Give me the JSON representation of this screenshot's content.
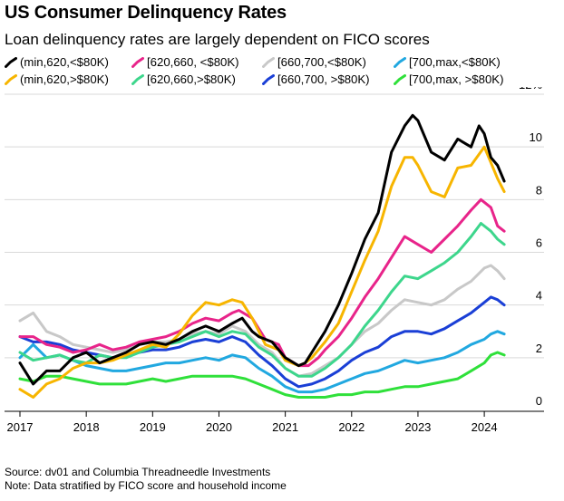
{
  "title": "US Consumer Delinquency Rates",
  "subtitle": "Loan delinquency rates are largely dependent on FICO scores",
  "source": "Source: dv01 and Columbia Threadneedle Investments",
  "note": "Note: Data stratified by FICO score and household income",
  "chart_data": {
    "type": "line",
    "title": "US Consumer Delinquency Rates",
    "subtitle": "Loan delinquency rates are largely dependent on FICO scores",
    "xlabel": "",
    "ylabel": "",
    "xlim": [
      2017,
      2024.6
    ],
    "ylim": [
      0,
      12
    ],
    "x_ticks": [
      2017,
      2018,
      2019,
      2020,
      2021,
      2022,
      2023,
      2024
    ],
    "x_tick_labels": [
      "2017",
      "2018",
      "2019",
      "2020",
      "2021",
      "2022",
      "2023",
      "2024"
    ],
    "y_ticks": [
      0,
      2,
      4,
      6,
      8,
      10,
      12
    ],
    "y_tick_labels": [
      "0",
      "2",
      "4",
      "6",
      "8",
      "10",
      "12%"
    ],
    "y_axis_position": "right",
    "grid": "horizontal",
    "legend_position": "top",
    "series": [
      {
        "name": "(min,620,<$80K)",
        "color": "#000000",
        "x": [
          2017.0,
          2017.2,
          2017.4,
          2017.6,
          2017.8,
          2018.0,
          2018.2,
          2018.4,
          2018.6,
          2018.8,
          2019.0,
          2019.2,
          2019.4,
          2019.6,
          2019.8,
          2020.0,
          2020.2,
          2020.35,
          2020.5,
          2020.6,
          2020.8,
          2021.0,
          2021.2,
          2021.3,
          2021.4,
          2021.6,
          2021.8,
          2022.0,
          2022.2,
          2022.4,
          2022.6,
          2022.8,
          2022.92,
          2023.0,
          2023.2,
          2023.4,
          2023.6,
          2023.8,
          2023.92,
          2024.0,
          2024.1,
          2024.2,
          2024.3
        ],
        "y": [
          1.8,
          1.0,
          1.5,
          1.5,
          2.0,
          2.2,
          1.8,
          2.0,
          2.2,
          2.5,
          2.6,
          2.5,
          2.7,
          3.0,
          3.2,
          3.0,
          3.3,
          3.5,
          3.0,
          2.8,
          2.6,
          2.0,
          1.7,
          1.8,
          2.2,
          3.0,
          4.0,
          5.2,
          6.5,
          7.5,
          9.8,
          10.8,
          11.2,
          11.0,
          9.8,
          9.5,
          10.3,
          10.0,
          10.8,
          10.5,
          9.6,
          9.3,
          8.7
        ]
      },
      {
        "name": "(min,620,>$80K)",
        "color": "#f7b500",
        "x": [
          2017.0,
          2017.2,
          2017.4,
          2017.6,
          2017.8,
          2018.0,
          2018.2,
          2018.4,
          2018.6,
          2018.8,
          2019.0,
          2019.2,
          2019.4,
          2019.6,
          2019.8,
          2020.0,
          2020.2,
          2020.35,
          2020.5,
          2020.7,
          2020.9,
          2021.0,
          2021.2,
          2021.3,
          2021.4,
          2021.6,
          2021.8,
          2022.0,
          2022.2,
          2022.4,
          2022.6,
          2022.8,
          2022.92,
          2023.0,
          2023.2,
          2023.4,
          2023.6,
          2023.8,
          2024.0,
          2024.1,
          2024.2,
          2024.3
        ],
        "y": [
          0.8,
          0.5,
          1.0,
          1.2,
          1.6,
          1.8,
          1.8,
          1.9,
          2.1,
          2.3,
          2.5,
          2.4,
          2.9,
          3.6,
          4.1,
          4.0,
          4.2,
          4.1,
          3.5,
          2.5,
          2.3,
          1.9,
          1.7,
          1.8,
          2.0,
          2.6,
          3.3,
          4.5,
          5.7,
          6.8,
          8.5,
          9.6,
          9.6,
          9.3,
          8.3,
          8.1,
          9.2,
          9.3,
          10.0,
          9.4,
          8.8,
          8.3
        ]
      },
      {
        "name": "[620,660, <$80K)",
        "color": "#e8248a",
        "x": [
          2017.0,
          2017.2,
          2017.4,
          2017.6,
          2017.8,
          2018.0,
          2018.2,
          2018.4,
          2018.6,
          2018.8,
          2019.0,
          2019.2,
          2019.4,
          2019.6,
          2019.8,
          2020.0,
          2020.2,
          2020.3,
          2020.5,
          2020.7,
          2020.9,
          2021.0,
          2021.2,
          2021.35,
          2021.5,
          2021.6,
          2021.8,
          2022.0,
          2022.2,
          2022.4,
          2022.6,
          2022.8,
          2023.0,
          2023.2,
          2023.4,
          2023.6,
          2023.8,
          2023.95,
          2024.1,
          2024.2,
          2024.3
        ],
        "y": [
          2.8,
          2.8,
          2.5,
          2.4,
          2.2,
          2.3,
          2.5,
          2.3,
          2.4,
          2.6,
          2.7,
          2.8,
          3.0,
          3.3,
          3.5,
          3.4,
          3.7,
          3.8,
          3.5,
          2.7,
          2.5,
          2.0,
          1.7,
          1.7,
          2.0,
          2.3,
          2.8,
          3.5,
          4.3,
          5.0,
          5.8,
          6.6,
          6.3,
          6.0,
          6.5,
          7.0,
          7.6,
          8.0,
          7.7,
          7.0,
          6.8
        ]
      },
      {
        "name": "[620,660,>$80K)",
        "color": "#3dd68c",
        "x": [
          2017.0,
          2017.2,
          2017.4,
          2017.6,
          2017.8,
          2018.0,
          2018.2,
          2018.4,
          2018.6,
          2018.8,
          2019.0,
          2019.2,
          2019.4,
          2019.6,
          2019.8,
          2020.0,
          2020.2,
          2020.4,
          2020.6,
          2020.8,
          2021.0,
          2021.2,
          2021.4,
          2021.6,
          2021.8,
          2022.0,
          2022.2,
          2022.4,
          2022.6,
          2022.8,
          2023.0,
          2023.2,
          2023.4,
          2023.6,
          2023.8,
          2023.95,
          2024.1,
          2024.2,
          2024.3
        ],
        "y": [
          2.2,
          1.9,
          2.0,
          2.1,
          1.9,
          1.8,
          2.1,
          2.0,
          2.0,
          2.2,
          2.4,
          2.5,
          2.6,
          2.8,
          3.0,
          2.8,
          3.0,
          2.9,
          2.4,
          2.1,
          1.6,
          1.3,
          1.3,
          1.6,
          2.0,
          2.5,
          3.2,
          3.8,
          4.5,
          5.1,
          5.0,
          5.3,
          5.6,
          6.0,
          6.6,
          7.1,
          6.8,
          6.5,
          6.3
        ]
      },
      {
        "name": "[660,700,<$80K)",
        "color": "#c8c8c8",
        "x": [
          2017.0,
          2017.2,
          2017.4,
          2017.6,
          2017.8,
          2018.0,
          2018.2,
          2018.4,
          2018.6,
          2018.8,
          2019.0,
          2019.2,
          2019.4,
          2019.6,
          2019.8,
          2020.0,
          2020.2,
          2020.4,
          2020.6,
          2020.8,
          2021.0,
          2021.2,
          2021.4,
          2021.6,
          2021.8,
          2022.0,
          2022.2,
          2022.4,
          2022.6,
          2022.8,
          2023.0,
          2023.2,
          2023.4,
          2023.6,
          2023.8,
          2024.0,
          2024.1,
          2024.2,
          2024.3
        ],
        "y": [
          3.4,
          3.7,
          3.0,
          2.8,
          2.5,
          2.4,
          2.3,
          2.2,
          2.3,
          2.5,
          2.6,
          2.6,
          2.7,
          2.9,
          3.0,
          2.9,
          3.2,
          3.0,
          2.5,
          2.2,
          1.6,
          1.3,
          1.4,
          1.7,
          2.0,
          2.5,
          3.0,
          3.3,
          3.8,
          4.2,
          4.1,
          4.0,
          4.2,
          4.6,
          4.9,
          5.4,
          5.5,
          5.3,
          5.0
        ]
      },
      {
        "name": "[660,700, >$80K)",
        "color": "#1a3fd6",
        "x": [
          2017.0,
          2017.2,
          2017.4,
          2017.6,
          2017.8,
          2018.0,
          2018.2,
          2018.4,
          2018.6,
          2018.8,
          2019.0,
          2019.2,
          2019.4,
          2019.6,
          2019.8,
          2020.0,
          2020.2,
          2020.4,
          2020.6,
          2020.8,
          2021.0,
          2021.2,
          2021.4,
          2021.6,
          2021.8,
          2022.0,
          2022.2,
          2022.4,
          2022.6,
          2022.8,
          2023.0,
          2023.2,
          2023.4,
          2023.6,
          2023.8,
          2024.0,
          2024.1,
          2024.2,
          2024.3
        ],
        "y": [
          2.8,
          2.6,
          2.6,
          2.5,
          2.3,
          2.2,
          2.1,
          2.0,
          2.1,
          2.2,
          2.3,
          2.3,
          2.4,
          2.6,
          2.7,
          2.6,
          2.8,
          2.6,
          2.1,
          1.7,
          1.2,
          0.9,
          1.0,
          1.2,
          1.5,
          1.9,
          2.2,
          2.4,
          2.8,
          3.0,
          3.0,
          2.9,
          3.1,
          3.4,
          3.7,
          4.1,
          4.3,
          4.2,
          4.0
        ]
      },
      {
        "name": "[700,max,<$80K)",
        "color": "#21a8e0",
        "x": [
          2017.0,
          2017.2,
          2017.4,
          2017.6,
          2017.8,
          2018.0,
          2018.2,
          2018.4,
          2018.6,
          2018.8,
          2019.0,
          2019.2,
          2019.4,
          2019.6,
          2019.8,
          2020.0,
          2020.2,
          2020.4,
          2020.6,
          2020.8,
          2021.0,
          2021.2,
          2021.4,
          2021.6,
          2021.8,
          2022.0,
          2022.2,
          2022.4,
          2022.6,
          2022.8,
          2023.0,
          2023.2,
          2023.4,
          2023.6,
          2023.8,
          2024.0,
          2024.1,
          2024.2,
          2024.3
        ],
        "y": [
          2.0,
          2.5,
          2.0,
          2.1,
          1.9,
          1.7,
          1.6,
          1.5,
          1.5,
          1.6,
          1.7,
          1.8,
          1.8,
          1.9,
          2.0,
          1.9,
          2.1,
          2.0,
          1.6,
          1.3,
          0.9,
          0.7,
          0.7,
          0.8,
          1.0,
          1.2,
          1.4,
          1.5,
          1.7,
          1.9,
          1.8,
          1.9,
          2.0,
          2.2,
          2.5,
          2.7,
          2.9,
          3.0,
          2.9
        ]
      },
      {
        "name": "[700,max, >$80K)",
        "color": "#2fe03a",
        "x": [
          2017.0,
          2017.2,
          2017.4,
          2017.6,
          2017.8,
          2018.0,
          2018.2,
          2018.4,
          2018.6,
          2018.8,
          2019.0,
          2019.2,
          2019.4,
          2019.6,
          2019.8,
          2020.0,
          2020.2,
          2020.4,
          2020.6,
          2020.8,
          2021.0,
          2021.2,
          2021.4,
          2021.6,
          2021.8,
          2022.0,
          2022.2,
          2022.4,
          2022.6,
          2022.8,
          2023.0,
          2023.2,
          2023.4,
          2023.6,
          2023.8,
          2024.0,
          2024.1,
          2024.2,
          2024.3
        ],
        "y": [
          1.2,
          1.1,
          1.3,
          1.3,
          1.2,
          1.1,
          1.0,
          1.0,
          1.0,
          1.1,
          1.2,
          1.1,
          1.2,
          1.3,
          1.3,
          1.3,
          1.3,
          1.2,
          1.0,
          0.8,
          0.6,
          0.5,
          0.5,
          0.5,
          0.6,
          0.6,
          0.7,
          0.7,
          0.8,
          0.9,
          0.9,
          1.0,
          1.1,
          1.2,
          1.5,
          1.8,
          2.1,
          2.2,
          2.1
        ]
      }
    ],
    "annotations": []
  }
}
